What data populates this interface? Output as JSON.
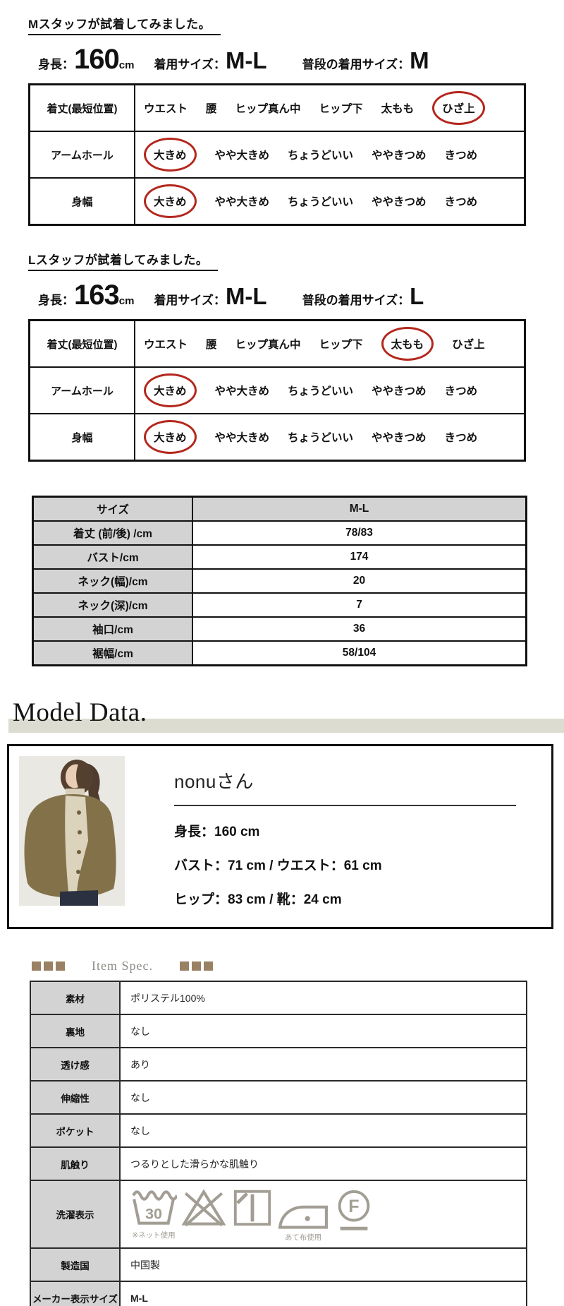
{
  "fit_sections": [
    {
      "heading": "Mスタッフが試着してみました。",
      "height_label": "身長：",
      "height_value": "160",
      "height_unit": "cm",
      "size_label": "着用サイズ：",
      "size_value": "M-L",
      "usual_label": "普段の着用サイズ：",
      "usual_value": "M",
      "rows": [
        {
          "label": "着丈(最短位置)",
          "options": [
            "ウエスト",
            "腰",
            "ヒップ真ん中",
            "ヒップ下",
            "太もも",
            "ひざ上"
          ],
          "circled_index": 5
        },
        {
          "label": "アームホール",
          "options": [
            "大きめ",
            "やや大きめ",
            "ちょうどいい",
            "ややきつめ",
            "きつめ"
          ],
          "circled_index": 0
        },
        {
          "label": "身幅",
          "options": [
            "大きめ",
            "やや大きめ",
            "ちょうどいい",
            "ややきつめ",
            "きつめ"
          ],
          "circled_index": 0
        }
      ]
    },
    {
      "heading": "Lスタッフが試着してみました。",
      "height_label": "身長：",
      "height_value": "163",
      "height_unit": "cm",
      "size_label": "着用サイズ：",
      "size_value": "M-L",
      "usual_label": "普段の着用サイズ：",
      "usual_value": "L",
      "rows": [
        {
          "label": "着丈(最短位置)",
          "options": [
            "ウエスト",
            "腰",
            "ヒップ真ん中",
            "ヒップ下",
            "太もも",
            "ひざ上"
          ],
          "circled_index": 4
        },
        {
          "label": "アームホール",
          "options": [
            "大きめ",
            "やや大きめ",
            "ちょうどいい",
            "ややきつめ",
            "きつめ"
          ],
          "circled_index": 0
        },
        {
          "label": "身幅",
          "options": [
            "大きめ",
            "やや大きめ",
            "ちょうどいい",
            "ややきつめ",
            "きつめ"
          ],
          "circled_index": 0
        }
      ]
    }
  ],
  "size_table": {
    "rows": [
      {
        "label": "サイズ",
        "value": "M-L",
        "header": true
      },
      {
        "label": "着丈 (前/後) /cm",
        "value": "78/83"
      },
      {
        "label": "バスト/cm",
        "value": "174"
      },
      {
        "label": "ネック(幅)/cm",
        "value": "20"
      },
      {
        "label": "ネック(深)/cm",
        "value": "7"
      },
      {
        "label": "袖口/cm",
        "value": "36"
      },
      {
        "label": "裾幅/cm",
        "value": "58/104"
      }
    ]
  },
  "model_data": {
    "heading": "Model Data.",
    "name": "nonuさん",
    "lines": [
      "身長：160 cm",
      "バスト：71 cm / ウエスト：61 cm",
      "ヒップ：83 cm / 靴：24 cm"
    ]
  },
  "item_spec": {
    "heading": "Item Spec.",
    "rows": [
      {
        "label": "素材",
        "value": "ポリステル100%"
      },
      {
        "label": "裏地",
        "value": "なし"
      },
      {
        "label": "透け感",
        "value": "あり"
      },
      {
        "label": "伸縮性",
        "value": "なし"
      },
      {
        "label": "ポケット",
        "value": "なし"
      },
      {
        "label": "肌触り",
        "value": "つるりとした滑らかな肌触り"
      },
      {
        "label": "洗濯表示",
        "type": "icons"
      },
      {
        "label": "製造国",
        "value": "中国製"
      },
      {
        "label": "メーカー表示サイズ",
        "value": "M-L",
        "bold": true
      }
    ],
    "laundry_icons": [
      {
        "name": "wash-30-icon",
        "number": "30",
        "note": "※ネット使用"
      },
      {
        "name": "no-bleach-icon"
      },
      {
        "name": "shade-line-dry-icon"
      },
      {
        "name": "iron-icon",
        "note": "あて布使用"
      },
      {
        "name": "dry-clean-f-icon",
        "letter": "F"
      }
    ]
  },
  "colors": {
    "circle_red": "#b3271d",
    "cell_grey": "#d3d3d3",
    "band_beige": "#dcdcd1",
    "square_tan": "#9a8164",
    "laundry_icon_grey": "#a29e94"
  }
}
